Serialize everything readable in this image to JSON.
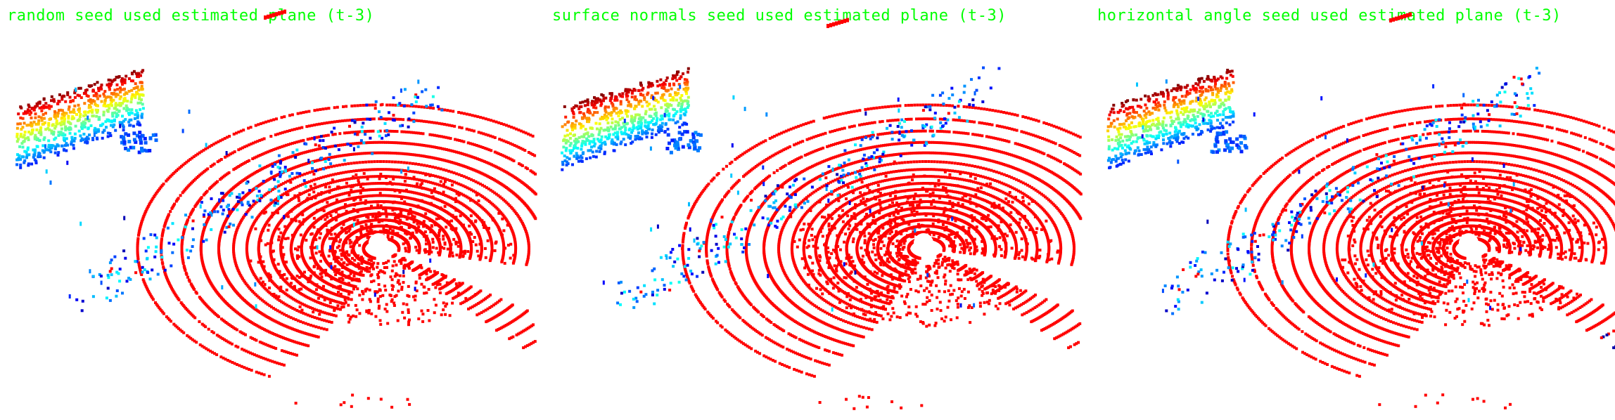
{
  "panels": [
    {
      "title": "random seed used estimated plane (t-3)"
    },
    {
      "title": "surface normals seed used estimated plane (t-3)"
    },
    {
      "title": "horizontal angle seed used estimated plane (t-3)"
    }
  ],
  "colors": {
    "title": "#00ff00",
    "ground": "#ff0000",
    "background": "#ffffff"
  }
}
